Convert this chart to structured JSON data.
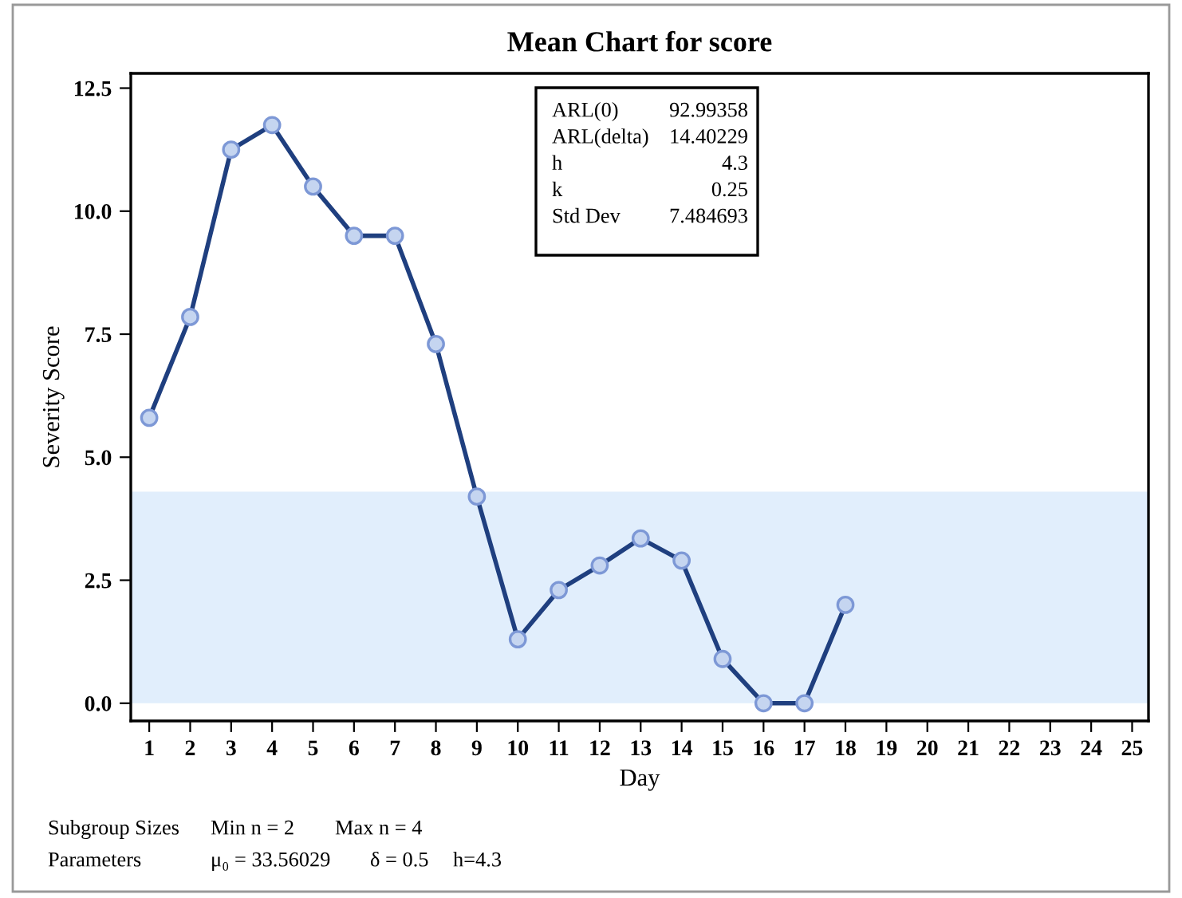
{
  "chart_data": {
    "type": "line",
    "title": "Mean Chart for score",
    "xlabel": "Day",
    "ylabel": "Severity Score",
    "x": [
      1,
      2,
      3,
      4,
      5,
      6,
      7,
      8,
      9,
      10,
      11,
      12,
      13,
      14,
      15,
      16,
      17,
      18
    ],
    "series": [
      {
        "color": "#1f3f7f",
        "values": [
          5.8,
          7.85,
          11.25,
          11.75,
          10.5,
          9.5,
          9.5,
          7.3,
          4.2,
          1.3,
          2.3,
          2.8,
          3.35,
          2.9,
          0.9,
          0,
          0,
          2.0
        ]
      }
    ],
    "marker": "circle",
    "line_style": "solid",
    "grid": false,
    "legend": false,
    "xlim": [
      0.55,
      25.4
    ],
    "ylim": [
      -0.36,
      12.8
    ],
    "xticks": [
      1,
      2,
      3,
      4,
      5,
      6,
      7,
      8,
      9,
      10,
      11,
      12,
      13,
      14,
      15,
      16,
      17,
      18,
      19,
      20,
      21,
      22,
      23,
      24,
      25
    ],
    "yticks": [
      {
        "value": 0,
        "label": "0.0"
      },
      {
        "value": 2.5,
        "label": "2.5"
      },
      {
        "value": 5,
        "label": "5.0"
      },
      {
        "value": 7.5,
        "label": "7.5"
      },
      {
        "value": 10,
        "label": "10.0"
      },
      {
        "value": 12.5,
        "label": "12.5"
      }
    ],
    "bands": [
      {
        "axis": "y",
        "from": 0,
        "to": 4.3,
        "color": "#e1eefc"
      }
    ],
    "annotations": [
      "ARL(0)",
      "92.99358",
      "ARL(delta)",
      "14.40229",
      "h",
      "4.3",
      "k",
      "0.25",
      "Std Dev",
      "7.484693",
      "Subgroup Sizes",
      "Min n = 2",
      "Max n = 4",
      "Parameters",
      "μ₀ = 33.56029",
      "δ = 0.5",
      "h=4.3"
    ]
  }
}
